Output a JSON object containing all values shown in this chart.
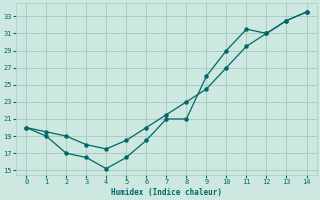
{
  "xlabel": "Humidex (Indice chaleur)",
  "bg_color": "#cce8e0",
  "grid_color": "#aaccc4",
  "line_color": "#006868",
  "line1_x": [
    0,
    1,
    2,
    3,
    4,
    5,
    6,
    7,
    8,
    9,
    10,
    11,
    12,
    13,
    14
  ],
  "line1_y": [
    20,
    19,
    17,
    16.5,
    15.2,
    16.5,
    18.5,
    21,
    21,
    26,
    29,
    31.5,
    31,
    32.5,
    33.5
  ],
  "line2_x": [
    0,
    1,
    2,
    3,
    4,
    5,
    6,
    7,
    8,
    9,
    10,
    11,
    12,
    13,
    14
  ],
  "line2_y": [
    20,
    19.5,
    19,
    18,
    17.5,
    18.5,
    20,
    21.5,
    23,
    24.5,
    27,
    29.5,
    31,
    32.5,
    33.5
  ],
  "xlim": [
    -0.5,
    14.5
  ],
  "ylim": [
    14.5,
    34.5
  ],
  "yticks": [
    15,
    17,
    19,
    21,
    23,
    25,
    27,
    29,
    31,
    33
  ],
  "xticks": [
    0,
    1,
    2,
    3,
    4,
    5,
    6,
    7,
    8,
    9,
    10,
    11,
    12,
    13,
    14
  ]
}
